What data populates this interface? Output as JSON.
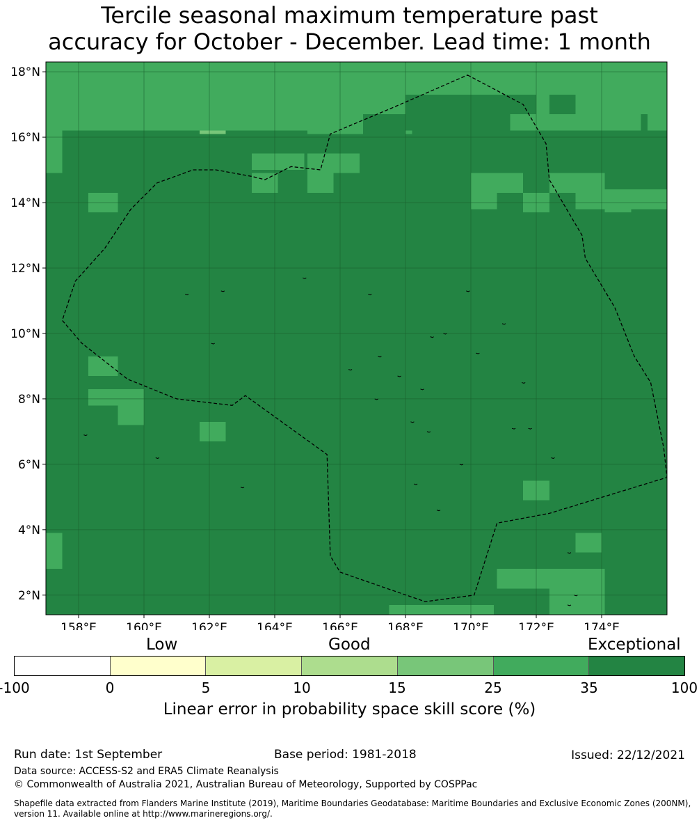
{
  "title_line1": "Tercile seasonal maximum temperature past",
  "title_line2": "accuracy for October - December. Lead time: 1 month",
  "map": {
    "lon_range": [
      157.0,
      176.0
    ],
    "lat_range": [
      1.4,
      18.3
    ],
    "grid_origin": {
      "lon": 157.0,
      "lat": 18.3
    },
    "cell_deg": 0.555,
    "lat_ticks": [
      "18°N",
      "16°N",
      "14°N",
      "12°N",
      "10°N",
      "8°N",
      "6°N",
      "4°N",
      "2°N"
    ],
    "lat_tick_values": [
      18,
      16,
      14,
      12,
      10,
      8,
      6,
      4,
      2
    ],
    "lon_ticks": [
      "158°E",
      "160°E",
      "162°E",
      "164°E",
      "166°E",
      "168°E",
      "170°E",
      "172°E",
      "174°E"
    ],
    "lon_tick_values": [
      158,
      160,
      162,
      164,
      166,
      168,
      170,
      172,
      174
    ],
    "category_colors": {
      "1": "#ffffff",
      "2": "#ffffcc",
      "3": "#d9f0a3",
      "4": "#addd8e",
      "5": "#78c679",
      "6": "#41ab5d",
      "7": "#238443"
    },
    "skill_grid": [
      "76555555555555666666666666666666666666667",
      "76555555555555666666666666666666666666667",
      "66666666655555566666666666666667666666667",
      "66666666655555566666666666666667666666667",
      "66666666666666666666666666666666666666667",
      "66666666666666666666666666666666666666667",
      "66666666666666666666666666666666666666666",
      "66666666666666666666666666666666666666666",
      "67777777777777777777777777777777777777766",
      "67777777777777777777777777777777777777766",
      "77777777777777777777777777777777777777777",
      "77777777777777777777777777777777777777777",
      "77777777777777777777777777777777777777777",
      "77777777777777777777777777777777777777777"
    ],
    "skill_overrides": [
      {
        "lon": 158.0,
        "lat": 17.8,
        "w": 7.2,
        "h": 0.5,
        "cat": 5
      },
      {
        "lon": 160.0,
        "lat": 17.3,
        "w": 4.2,
        "h": 1.0,
        "cat": 5
      },
      {
        "lon": 161.7,
        "lat": 16.7,
        "w": 0.8,
        "h": 0.6,
        "cat": 5
      },
      {
        "lon": 157.0,
        "lat": 18.3,
        "w": 0.5,
        "h": 2.8,
        "cat": 6
      },
      {
        "lon": 157.0,
        "lat": 15.5,
        "w": 0.5,
        "h": 0.6,
        "cat": 6
      },
      {
        "lon": 157.5,
        "lat": 18.3,
        "w": 18.5,
        "h": 2.1,
        "cat": 6
      },
      {
        "lon": 165.0,
        "lat": 17.8,
        "w": 3.2,
        "h": 1.7,
        "cat": 6
      },
      {
        "lon": 168.0,
        "lat": 17.3,
        "w": 1.6,
        "h": 1.1,
        "cat": 7
      },
      {
        "lon": 169.6,
        "lat": 17.3,
        "w": 1.6,
        "h": 1.7,
        "cat": 7
      },
      {
        "lon": 171.2,
        "lat": 17.3,
        "w": 0.8,
        "h": 0.6,
        "cat": 7
      },
      {
        "lon": 172.4,
        "lat": 17.3,
        "w": 0.8,
        "h": 0.6,
        "cat": 7
      },
      {
        "lon": 166.7,
        "lat": 16.7,
        "w": 1.3,
        "h": 0.6,
        "cat": 7
      },
      {
        "lon": 157.5,
        "lat": 16.1,
        "w": 1.7,
        "h": 0.6,
        "cat": 7
      },
      {
        "lon": 162.5,
        "lat": 16.1,
        "w": 0.8,
        "h": 0.6,
        "cat": 7
      },
      {
        "lon": 173.2,
        "lat": 16.1,
        "w": 1.6,
        "h": 0.6,
        "cat": 7
      },
      {
        "lon": 175.2,
        "lat": 16.7,
        "w": 0.2,
        "h": 0.6,
        "cat": 7
      },
      {
        "lon": 163.3,
        "lat": 15.5,
        "w": 1.6,
        "h": 0.5,
        "cat": 6
      },
      {
        "lon": 165.0,
        "lat": 15.5,
        "w": 1.6,
        "h": 0.6,
        "cat": 6
      },
      {
        "lon": 170.0,
        "lat": 14.9,
        "w": 1.6,
        "h": 0.6,
        "cat": 6
      },
      {
        "lon": 170.0,
        "lat": 14.4,
        "w": 0.8,
        "h": 0.6,
        "cat": 6
      },
      {
        "lon": 172.4,
        "lat": 14.9,
        "w": 1.7,
        "h": 0.6,
        "cat": 6
      },
      {
        "lon": 173.2,
        "lat": 14.4,
        "w": 2.8,
        "h": 0.6,
        "cat": 6
      },
      {
        "lon": 163.3,
        "lat": 14.9,
        "w": 0.8,
        "h": 0.6,
        "cat": 6
      },
      {
        "lon": 165.0,
        "lat": 14.9,
        "w": 0.8,
        "h": 0.6,
        "cat": 6
      },
      {
        "lon": 158.3,
        "lat": 14.3,
        "w": 0.9,
        "h": 0.6,
        "cat": 6
      },
      {
        "lon": 171.6,
        "lat": 14.3,
        "w": 0.8,
        "h": 0.6,
        "cat": 6
      },
      {
        "lon": 174.1,
        "lat": 14.3,
        "w": 0.8,
        "h": 0.6,
        "cat": 6
      },
      {
        "lon": 158.3,
        "lat": 9.3,
        "w": 0.9,
        "h": 0.6,
        "cat": 6
      },
      {
        "lon": 158.3,
        "lat": 8.3,
        "w": 0.9,
        "h": 0.5,
        "cat": 6
      },
      {
        "lon": 159.2,
        "lat": 8.3,
        "w": 0.8,
        "h": 1.1,
        "cat": 6
      },
      {
        "lon": 161.7,
        "lat": 7.3,
        "w": 0.8,
        "h": 0.6,
        "cat": 6
      },
      {
        "lon": 171.6,
        "lat": 5.5,
        "w": 0.8,
        "h": 0.6,
        "cat": 6
      },
      {
        "lon": 157.0,
        "lat": 3.9,
        "w": 0.5,
        "h": 1.1,
        "cat": 6
      },
      {
        "lon": 173.2,
        "lat": 3.9,
        "w": 0.8,
        "h": 0.6,
        "cat": 6
      },
      {
        "lon": 170.8,
        "lat": 2.8,
        "w": 3.3,
        "h": 0.6,
        "cat": 6
      },
      {
        "lon": 172.4,
        "lat": 2.3,
        "w": 1.7,
        "h": 0.9,
        "cat": 6
      },
      {
        "lon": 167.5,
        "lat": 1.7,
        "w": 3.2,
        "h": 0.3,
        "cat": 6
      }
    ],
    "eez_boundary": [
      [
        169.9,
        17.9
      ],
      [
        171.6,
        17.0
      ],
      [
        172.3,
        15.8
      ],
      [
        172.4,
        14.7
      ],
      [
        173.4,
        13.0
      ],
      [
        173.5,
        12.3
      ],
      [
        174.4,
        10.8
      ],
      [
        175.0,
        9.3
      ],
      [
        175.5,
        8.5
      ],
      [
        175.9,
        6.5
      ],
      [
        176.0,
        5.6
      ],
      [
        172.4,
        4.5
      ],
      [
        170.8,
        4.2
      ],
      [
        170.1,
        2.0
      ],
      [
        168.6,
        1.8
      ],
      [
        166.0,
        2.7
      ],
      [
        165.7,
        3.2
      ],
      [
        165.6,
        6.3
      ],
      [
        163.1,
        8.1
      ],
      [
        162.7,
        7.8
      ],
      [
        161.0,
        8.0
      ],
      [
        159.5,
        8.6
      ],
      [
        158.1,
        9.7
      ],
      [
        157.5,
        10.4
      ],
      [
        157.9,
        11.6
      ],
      [
        158.8,
        12.6
      ],
      [
        159.6,
        13.8
      ],
      [
        160.4,
        14.6
      ],
      [
        161.5,
        15.0
      ],
      [
        162.2,
        15.0
      ],
      [
        163.3,
        14.8
      ],
      [
        163.7,
        14.7
      ],
      [
        164.5,
        15.1
      ],
      [
        165.4,
        15.0
      ],
      [
        165.7,
        16.1
      ],
      [
        167.6,
        16.9
      ],
      [
        169.9,
        17.9
      ]
    ],
    "islands": [
      [
        158.2,
        6.9
      ],
      [
        160.4,
        6.2
      ],
      [
        163.0,
        5.3
      ],
      [
        161.3,
        11.2
      ],
      [
        162.4,
        11.3
      ],
      [
        164.9,
        11.7
      ],
      [
        166.9,
        11.2
      ],
      [
        168.8,
        9.9
      ],
      [
        169.2,
        10.0
      ],
      [
        169.9,
        11.3
      ],
      [
        171.0,
        10.3
      ],
      [
        170.2,
        9.4
      ],
      [
        166.3,
        8.9
      ],
      [
        167.2,
        9.3
      ],
      [
        167.8,
        8.7
      ],
      [
        167.1,
        8.0
      ],
      [
        168.5,
        8.3
      ],
      [
        168.2,
        7.3
      ],
      [
        168.7,
        7.0
      ],
      [
        171.3,
        7.1
      ],
      [
        171.8,
        7.1
      ],
      [
        172.5,
        6.2
      ],
      [
        169.7,
        6.0
      ],
      [
        168.3,
        5.4
      ],
      [
        169.0,
        4.6
      ],
      [
        173.0,
        3.3
      ],
      [
        173.2,
        2.0
      ],
      [
        173.0,
        1.7
      ],
      [
        162.1,
        9.7
      ],
      [
        171.6,
        8.5
      ]
    ]
  },
  "colorbar": {
    "categories": [
      "Low",
      "Good",
      "Exceptional"
    ],
    "colors": [
      "#ffffff",
      "#ffffcc",
      "#d9f0a3",
      "#addd8e",
      "#78c679",
      "#41ab5d",
      "#238443"
    ],
    "ticks": [
      "-100",
      "0",
      "5",
      "10",
      "15",
      "25",
      "35",
      "100"
    ],
    "xlabel": "Linear error in probability space skill score (%)"
  },
  "footer": {
    "run_date": "Run date: 1st September",
    "base_period": "Base period: 1981-2018",
    "issued": "Issued: 22/12/2021",
    "data_source": "Data source: ACCESS-S2 and ERA5 Climate Reanalysis",
    "copyright": "© Commonwealth of Australia 2021, Australian Bureau of Meteorology, Supported by COSPPac",
    "shapefile_line1": "Shapefile data extracted from Flanders Marine Institute (2019), Maritime Boundaries Geodatabase: Maritime Boundaries and Exclusive Economic Zones (200NM),",
    "shapefile_line2": "version 11. Available online at http://www.marineregions.org/."
  }
}
